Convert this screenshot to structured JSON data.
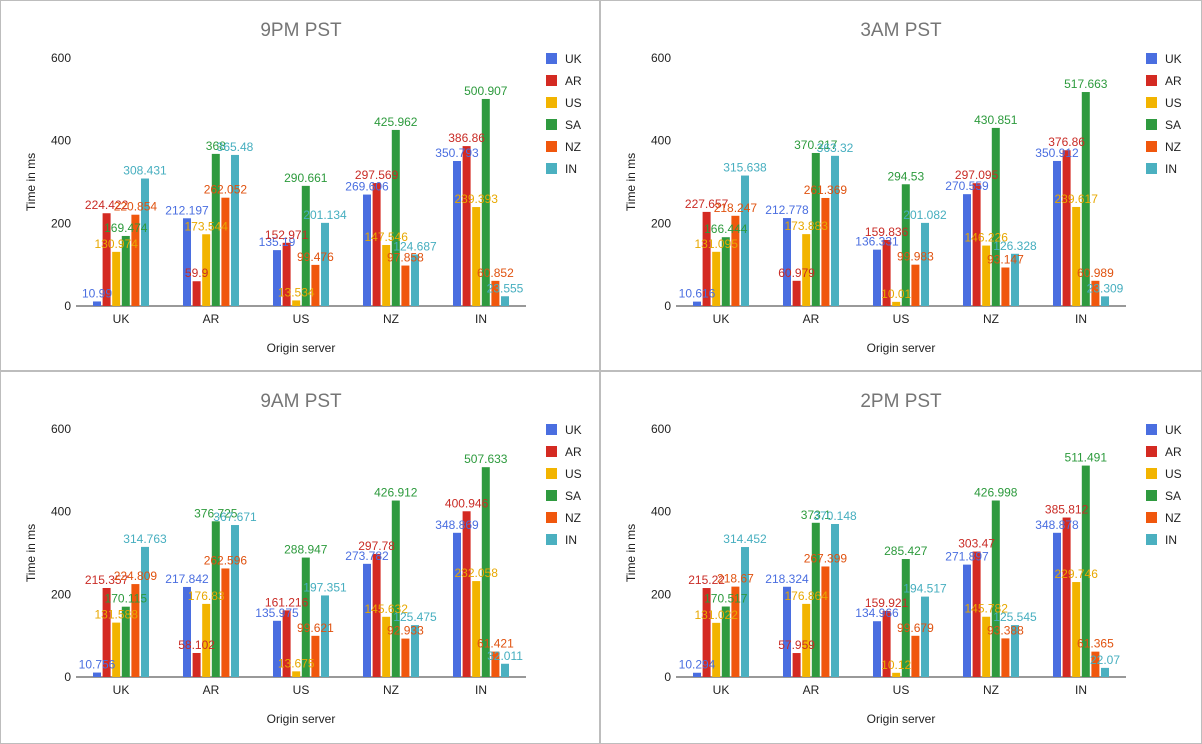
{
  "colors": {
    "UK": "#4a6ee0",
    "AR": "#d42a22",
    "US": "#f2b400",
    "SA": "#2f9a3f",
    "NZ": "#f0570d",
    "IN": "#4bb0c0"
  },
  "label_colors": {
    "UK": "#4a6ee0",
    "AR": "#c92b25",
    "US": "#e8a800",
    "SA": "#2c9a3c",
    "NZ": "#e0520f",
    "IN": "#45aebf"
  },
  "chart_data": [
    {
      "type": "bar",
      "title": "9PM PST",
      "xlabel": "Origin server",
      "ylabel": "Time in ms",
      "ylim": [
        0,
        600
      ],
      "yticks": [
        "0",
        "200",
        "400",
        "600"
      ],
      "categories": [
        "UK",
        "AR",
        "US",
        "NZ",
        "IN"
      ],
      "legend_position": "right",
      "series": [
        {
          "name": "UK",
          "values": [
            10.99,
            212.197,
            135.19,
            269.606,
            350.793
          ],
          "labels": [
            "10.99",
            "212.197",
            "135.19",
            "269.606",
            "350.793"
          ]
        },
        {
          "name": "AR",
          "values": [
            224.422,
            59.9,
            152.971,
            297.569,
            386.86
          ],
          "labels": [
            "224.422",
            "59.9",
            "152.971",
            "297.569",
            "386.86"
          ]
        },
        {
          "name": "US",
          "values": [
            130.974,
            173.544,
            13.534,
            147.546,
            239.393
          ],
          "labels": [
            "130.974",
            "173.544",
            "13.534",
            "147.546",
            "239.393"
          ]
        },
        {
          "name": "SA",
          "values": [
            169.474,
            368,
            290.661,
            425.962,
            500.907
          ],
          "labels": [
            "169.474",
            "368",
            "290.661",
            "425.962",
            "500.907"
          ]
        },
        {
          "name": "NZ",
          "values": [
            220.854,
            262.052,
            99.476,
            97.858,
            60.852
          ],
          "labels": [
            "220.854",
            "262.052",
            "99.476",
            "97.858",
            "60.852"
          ]
        },
        {
          "name": "IN",
          "values": [
            308.431,
            365.48,
            201.134,
            124.687,
            23.555
          ],
          "labels": [
            "308.431",
            "365.48",
            "201.134",
            "124.687",
            "23.555"
          ]
        }
      ]
    },
    {
      "type": "bar",
      "title": "3AM PST",
      "xlabel": "Origin server",
      "ylabel": "Time in ms",
      "ylim": [
        0,
        600
      ],
      "yticks": [
        "0",
        "200",
        "400",
        "600"
      ],
      "categories": [
        "UK",
        "AR",
        "US",
        "NZ",
        "IN"
      ],
      "legend_position": "right",
      "series": [
        {
          "name": "UK",
          "values": [
            10.616,
            212.778,
            136.331,
            270.559,
            350.912
          ],
          "labels": [
            "10.616",
            "212.778",
            "136.331",
            "270.559",
            "350.912"
          ]
        },
        {
          "name": "AR",
          "values": [
            227.657,
            60.979,
            159.836,
            297.095,
            376.86
          ],
          "labels": [
            "227.657",
            "60.979",
            "159.836",
            "297.095",
            "376.86"
          ]
        },
        {
          "name": "US",
          "values": [
            131.095,
            173.883,
            10.01,
            146.226,
            239.617
          ],
          "labels": [
            "131.095",
            "173.883",
            "10.01",
            "146.226",
            "239.617"
          ]
        },
        {
          "name": "SA",
          "values": [
            166.444,
            370.217,
            294.53,
            430.851,
            517.663
          ],
          "labels": [
            "166.444",
            "370.217",
            "294.53",
            "430.851",
            "517.663"
          ]
        },
        {
          "name": "NZ",
          "values": [
            218.247,
            261.369,
            99.983,
            93.147,
            60.989
          ],
          "labels": [
            "218.247",
            "261.369",
            "99.983",
            "93.147",
            "60.989"
          ]
        },
        {
          "name": "IN",
          "values": [
            315.638,
            363.32,
            201.082,
            126.328,
            23.309
          ],
          "labels": [
            "315.638",
            "363.32",
            "201.082",
            "126.328",
            "23.309"
          ]
        }
      ]
    },
    {
      "type": "bar",
      "title": "9AM PST",
      "xlabel": "Origin server",
      "ylabel": "Time in ms",
      "ylim": [
        0,
        600
      ],
      "yticks": [
        "0",
        "200",
        "400",
        "600"
      ],
      "categories": [
        "UK",
        "AR",
        "US",
        "NZ",
        "IN"
      ],
      "legend_position": "right",
      "series": [
        {
          "name": "UK",
          "values": [
            10.756,
            217.842,
            135.975,
            273.782,
            348.869
          ],
          "labels": [
            "10.756",
            "217.842",
            "135.975",
            "273.782",
            "348.869"
          ]
        },
        {
          "name": "AR",
          "values": [
            215.357,
            58.102,
            161.216,
            297.78,
            400.946
          ],
          "labels": [
            "215.357",
            "58.102",
            "161.216",
            "297.78",
            "400.946"
          ]
        },
        {
          "name": "US",
          "values": [
            131.588,
            176.83,
            13.675,
            145.632,
            232.058
          ],
          "labels": [
            "131.588",
            "176.83",
            "13.675",
            "145.632",
            "232.058"
          ]
        },
        {
          "name": "SA",
          "values": [
            170.115,
            376.725,
            288.947,
            426.912,
            507.633
          ],
          "labels": [
            "170.115",
            "376.725",
            "288.947",
            "426.912",
            "507.633"
          ]
        },
        {
          "name": "NZ",
          "values": [
            224.809,
            262.596,
            99.621,
            92.933,
            61.421
          ],
          "labels": [
            "224.809",
            "262.596",
            "99.621",
            "92.933",
            "61.421"
          ]
        },
        {
          "name": "IN",
          "values": [
            314.763,
            367.671,
            197.351,
            125.475,
            32.011
          ],
          "labels": [
            "314.763",
            "367.671",
            "197.351",
            "125.475",
            "32.011"
          ]
        }
      ]
    },
    {
      "type": "bar",
      "title": "2PM PST",
      "xlabel": "Origin server",
      "ylabel": "Time in ms",
      "ylim": [
        0,
        600
      ],
      "yticks": [
        "0",
        "200",
        "400",
        "600"
      ],
      "categories": [
        "UK",
        "AR",
        "US",
        "NZ",
        "IN"
      ],
      "legend_position": "right",
      "series": [
        {
          "name": "UK",
          "values": [
            10.294,
            218.324,
            134.966,
            271.897,
            348.878
          ],
          "labels": [
            "10.294",
            "218.324",
            "134.966",
            "271.897",
            "348.878"
          ]
        },
        {
          "name": "AR",
          "values": [
            215.22,
            57.959,
            159.921,
            303.47,
            385.812
          ],
          "labels": [
            "215.22",
            "57.959",
            "159.921",
            "303.47",
            "385.812"
          ]
        },
        {
          "name": "US",
          "values": [
            131.022,
            176.864,
            10.12,
            145.782,
            229.746
          ],
          "labels": [
            "131.022",
            "176.864",
            "10.12",
            "145.782",
            "229.746"
          ]
        },
        {
          "name": "SA",
          "values": [
            170.517,
            373.1,
            285.427,
            426.998,
            511.491
          ],
          "labels": [
            "170.517",
            "373.1",
            "285.427",
            "426.998",
            "511.491"
          ]
        },
        {
          "name": "NZ",
          "values": [
            218.67,
            267.399,
            99.679,
            93.388,
            61.365
          ],
          "labels": [
            "218.67",
            "267.399",
            "99.679",
            "93.388",
            "61.365"
          ]
        },
        {
          "name": "IN",
          "values": [
            314.452,
            370.148,
            194.517,
            125.545,
            22.07
          ],
          "labels": [
            "314.452",
            "370.148",
            "194.517",
            "125.545",
            "22.07"
          ]
        }
      ]
    }
  ]
}
